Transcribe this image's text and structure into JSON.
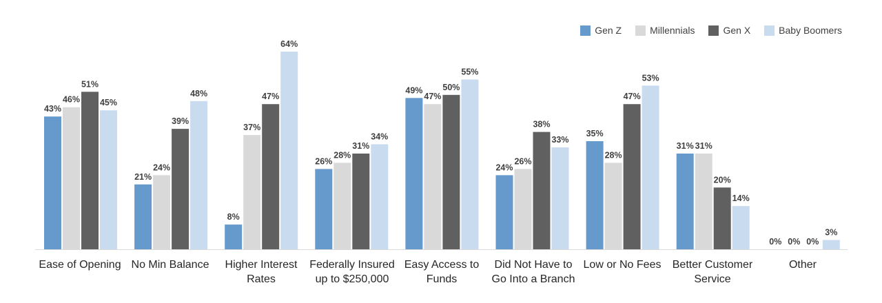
{
  "chart_data": {
    "type": "bar",
    "title": "",
    "xlabel": "",
    "ylabel": "",
    "ylim": [
      0,
      66
    ],
    "grid": false,
    "legend_position": "top-right",
    "categories": [
      "Ease of Opening",
      "No Min Balance",
      "Higher Interest Rates",
      "Federally Insured up to $250,000",
      "Easy Access to Funds",
      "Did Not Have to Go Into a Branch",
      "Low or No Fees",
      "Better Customer Service",
      "Other"
    ],
    "series": [
      {
        "name": "Gen Z",
        "color": "#6699cc",
        "values": [
          43,
          21,
          8,
          26,
          49,
          24,
          35,
          31,
          0
        ]
      },
      {
        "name": "Millennials",
        "color": "#d9d9d9",
        "values": [
          46,
          24,
          37,
          28,
          47,
          26,
          28,
          31,
          0
        ]
      },
      {
        "name": "Gen X",
        "color": "#606060",
        "values": [
          51,
          39,
          47,
          31,
          50,
          38,
          47,
          20,
          0
        ]
      },
      {
        "name": "Baby Boomers",
        "color": "#c9dbee",
        "values": [
          45,
          48,
          64,
          34,
          55,
          33,
          53,
          14,
          3
        ]
      }
    ],
    "value_suffix": "%"
  }
}
